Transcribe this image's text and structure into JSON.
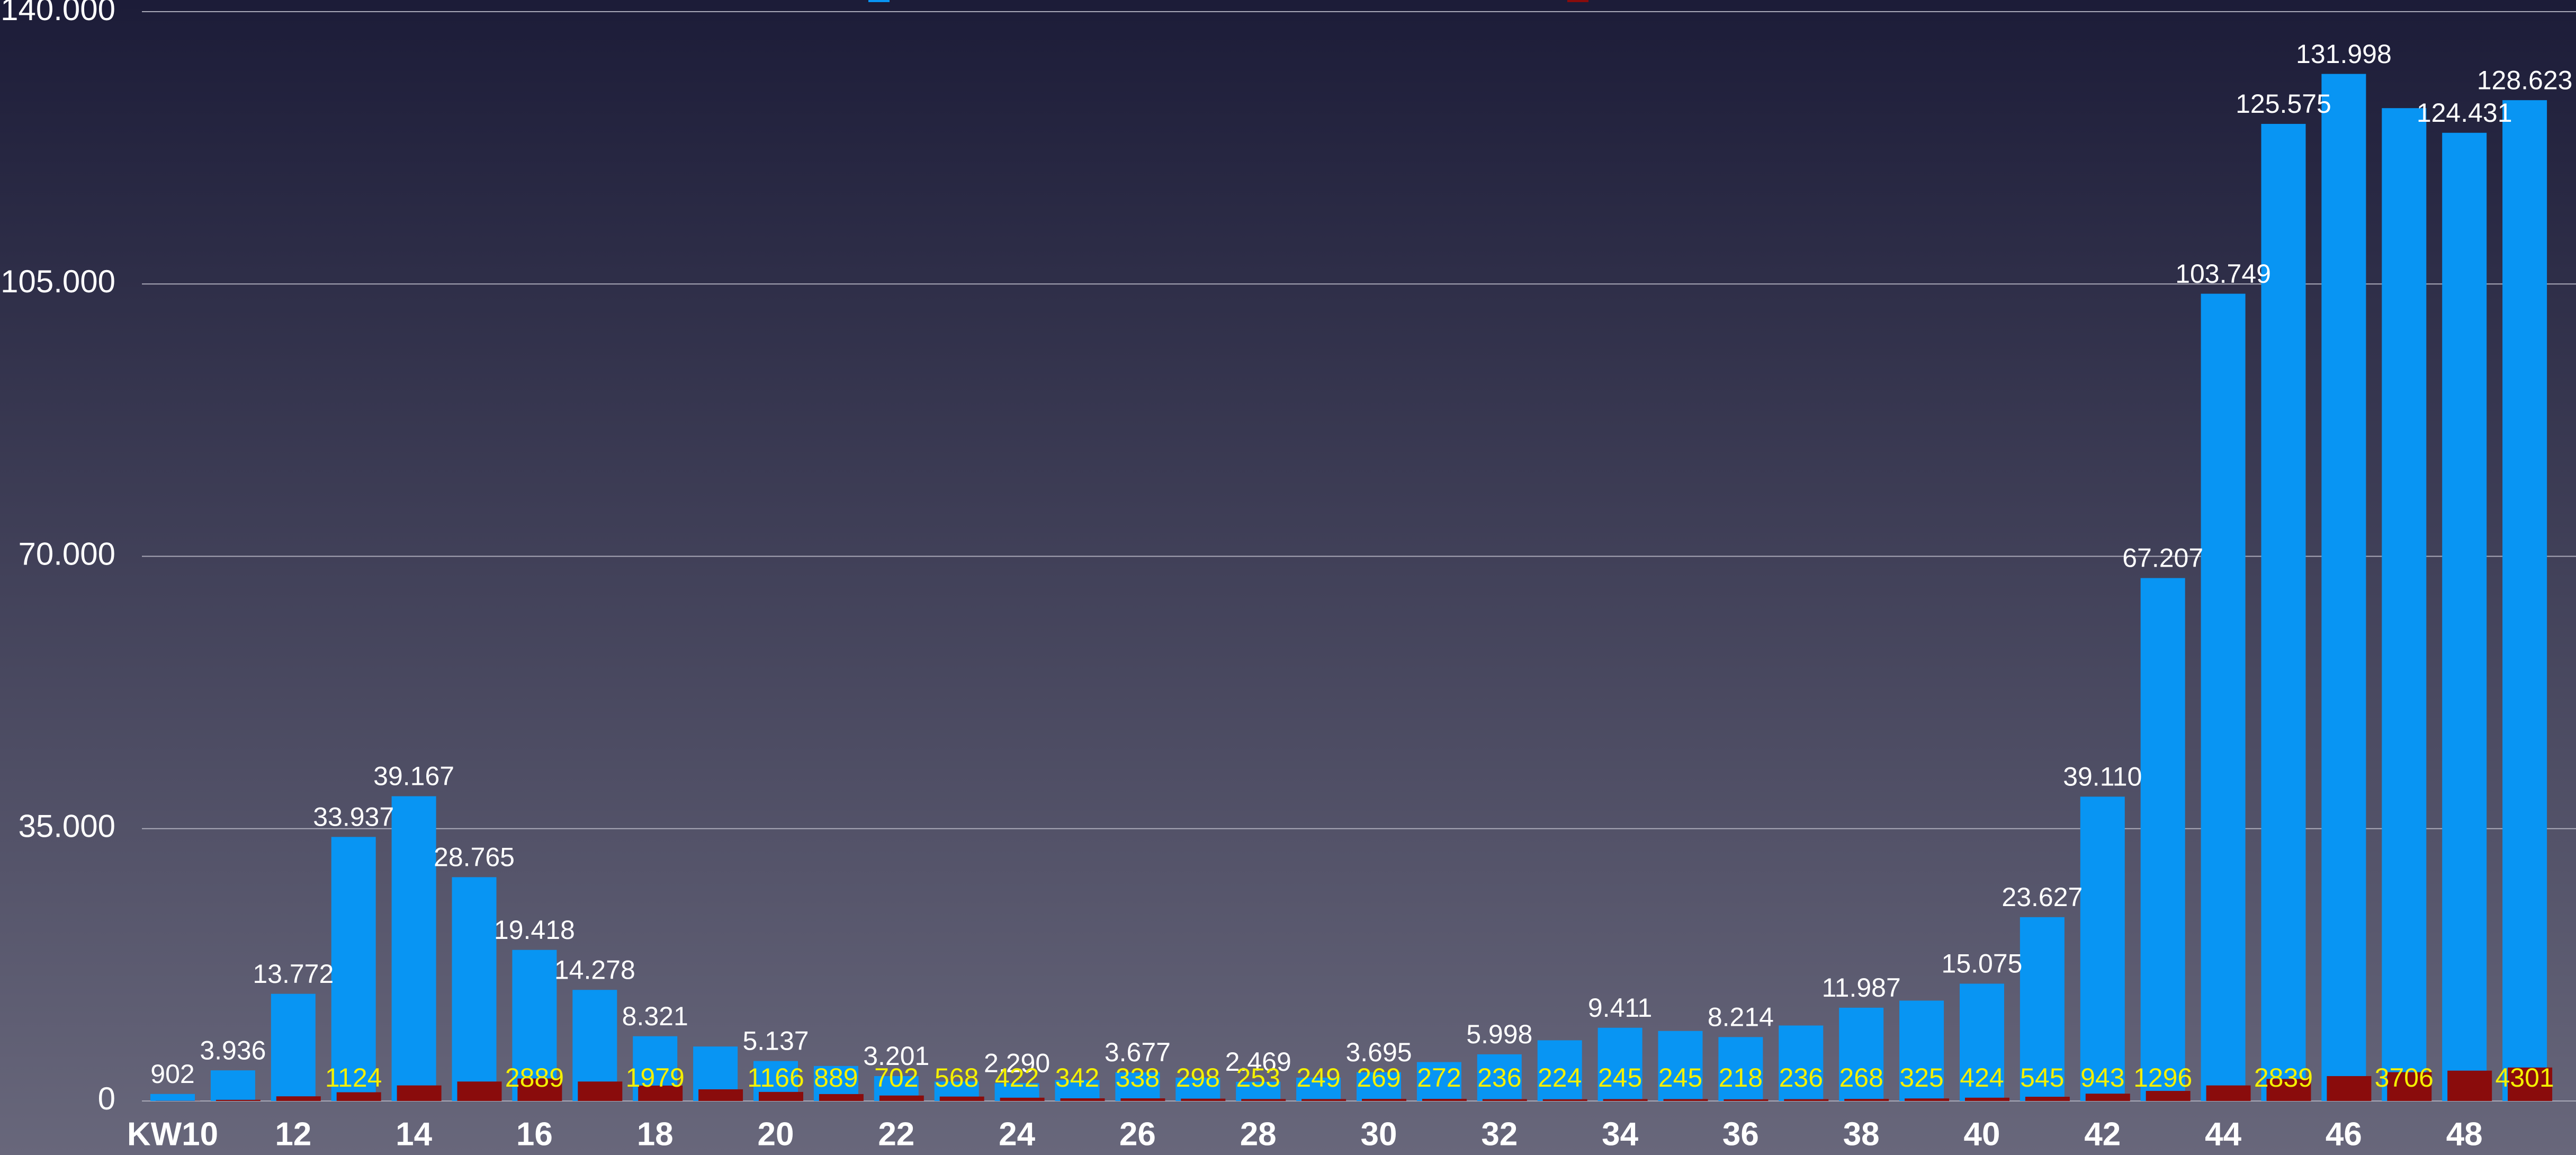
{
  "chart_data": {
    "type": "bar",
    "categories": [
      "KW10",
      null,
      "12",
      null,
      "14",
      null,
      "16",
      null,
      "18",
      null,
      "20",
      null,
      "22",
      null,
      "24",
      null,
      "26",
      null,
      "28",
      null,
      "30",
      null,
      "32",
      null,
      "34",
      null,
      "36",
      null,
      "38",
      null,
      "40",
      null,
      "42",
      null,
      "44",
      null,
      "46",
      null,
      "48",
      null
    ],
    "series": [
      {
        "color": "#0895f3",
        "values": [
          902,
          3936,
          13772,
          33937,
          39167,
          28765,
          19418,
          14278,
          8321,
          7000,
          5137,
          4500,
          3201,
          2500,
          2290,
          2700,
          3677,
          3000,
          2469,
          3000,
          3695,
          5000,
          5998,
          7800,
          9411,
          9000,
          8214,
          9700,
          11987,
          12900,
          15075,
          23627,
          39110,
          67207,
          103749,
          125575,
          131998,
          127600,
          124431,
          128623
        ],
        "value_labels": [
          "902",
          "3.936",
          "13.772",
          "33.937",
          "39.167",
          "28.765",
          "19.418",
          "14.278",
          "8.321",
          null,
          "5.137",
          null,
          "3.201",
          null,
          "2.290",
          null,
          "3.677",
          null,
          "2.469",
          null,
          "3.695",
          null,
          "5.998",
          null,
          "9.411",
          null,
          "8.214",
          null,
          "11.987",
          null,
          "15.075",
          "23.627",
          "39.110",
          "67.207",
          "103.749",
          "125.575",
          "131.998",
          null,
          "124.431",
          "128.623"
        ]
      },
      {
        "color": "#8a0c0c",
        "values": [
          20,
          150,
          600,
          1124,
          2000,
          2500,
          2889,
          2500,
          1979,
          1500,
          1166,
          889,
          702,
          568,
          422,
          342,
          338,
          298,
          253,
          249,
          269,
          272,
          236,
          224,
          245,
          245,
          218,
          236,
          268,
          325,
          424,
          545,
          943,
          1296,
          2000,
          2839,
          3200,
          3706,
          3900,
          4301
        ],
        "value_labels": [
          null,
          null,
          null,
          "1124",
          null,
          null,
          "2889",
          null,
          "1979",
          null,
          "1166",
          "889",
          "702",
          "568",
          "422",
          "342",
          "338",
          "298",
          "253",
          "249",
          "269",
          "272",
          "236",
          "224",
          "245",
          "245",
          "218",
          "236",
          "268",
          "325",
          "424",
          "545",
          "943",
          "1296",
          null,
          "2839",
          null,
          "3706",
          null,
          "4301"
        ]
      }
    ],
    "ylim": [
      0,
      140000
    ],
    "yticks": [
      0,
      {
        "value": 35000,
        "label": "35.000"
      },
      {
        "value": 70000,
        "label": "70.000"
      },
      {
        "value": 105000,
        "label": "105.000"
      },
      {
        "value": 140000,
        "label": "140.000"
      }
    ],
    "grid": true
  }
}
